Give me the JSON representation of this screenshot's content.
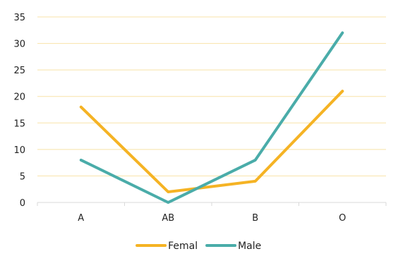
{
  "chart_data": {
    "type": "line",
    "categories": [
      "A",
      "AB",
      "B",
      "O"
    ],
    "series": [
      {
        "name": "Femal",
        "values": [
          18,
          2,
          4,
          21
        ],
        "color": "#F5B324"
      },
      {
        "name": "Male",
        "values": [
          8,
          0,
          8,
          32
        ],
        "color": "#4AACA9"
      }
    ],
    "ylim": [
      0,
      35
    ],
    "yticks": [
      0,
      5,
      10,
      15,
      20,
      25,
      30,
      35
    ],
    "grid": true,
    "gridline_color": "#F8E3A8",
    "axis_color": "#D9D9D9",
    "legend_position": "bottom"
  }
}
